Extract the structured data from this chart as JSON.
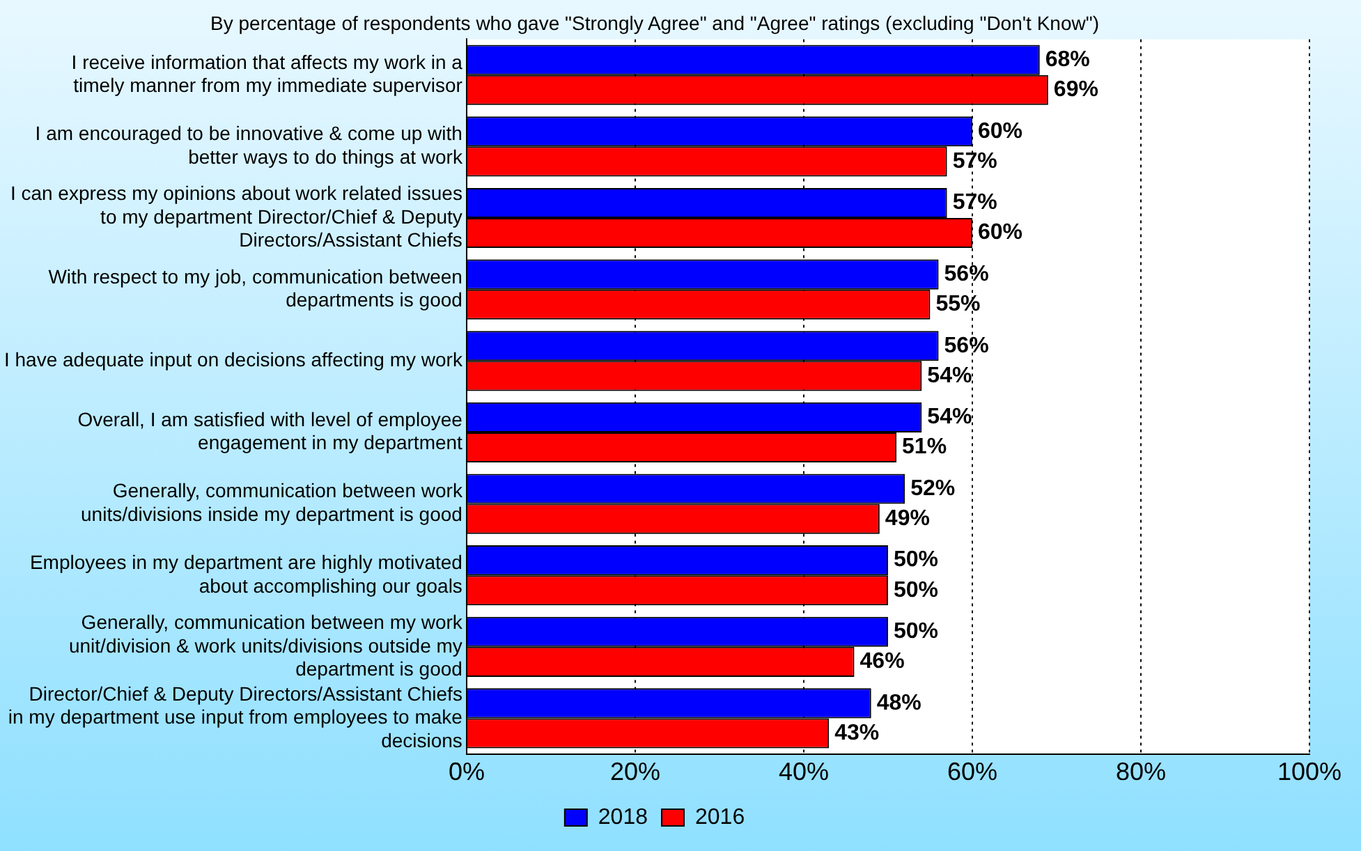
{
  "chart_data": {
    "type": "bar",
    "orientation": "horizontal",
    "subtitle": "By percentage of respondents who gave \"Strongly Agree\" and \"Agree\" ratings (excluding \"Don't Know\")",
    "categories": [
      "I receive information that affects my work in a timely manner from my immediate supervisor",
      "I am encouraged to be innovative & come up with better ways to do things at work",
      "I can express my opinions about work related issues to my department Director/Chief & Deputy Directors/Assistant Chiefs",
      "With respect to my job, communication between departments is good",
      "I have adequate input on decisions affecting my work",
      "Overall, I am satisfied with level of employee engagement in my department",
      "Generally, communication between work units/divisions inside my department is good",
      "Employees in my department are highly motivated about accomplishing our goals",
      "Generally, communication between my work unit/division & work units/divisions outside my department is good",
      "Director/Chief & Deputy Directors/Assistant Chiefs in my department use input from employees to make decisions"
    ],
    "series": [
      {
        "name": "2018",
        "color": "#0000ff",
        "values": [
          68,
          60,
          57,
          56,
          56,
          54,
          52,
          50,
          50,
          48
        ],
        "value_labels": [
          "68%",
          "60%",
          "57%",
          "56%",
          "56%",
          "54%",
          "52%",
          "50%",
          "50%",
          "48%"
        ]
      },
      {
        "name": "2016",
        "color": "#ff0000",
        "values": [
          69,
          57,
          60,
          55,
          54,
          51,
          49,
          50,
          46,
          43
        ],
        "value_labels": [
          "69%",
          "57%",
          "60%",
          "55%",
          "54%",
          "51%",
          "49%",
          "50%",
          "46%",
          "43%"
        ]
      }
    ],
    "xlim": [
      0,
      100
    ],
    "xticks": [
      {
        "value": 0,
        "label": "0%"
      },
      {
        "value": 20,
        "label": "20%"
      },
      {
        "value": 40,
        "label": "40%"
      },
      {
        "value": 60,
        "label": "60%"
      },
      {
        "value": 80,
        "label": "80%"
      },
      {
        "value": 100,
        "label": "100%"
      }
    ],
    "grid": "x",
    "legend": "bottom"
  }
}
